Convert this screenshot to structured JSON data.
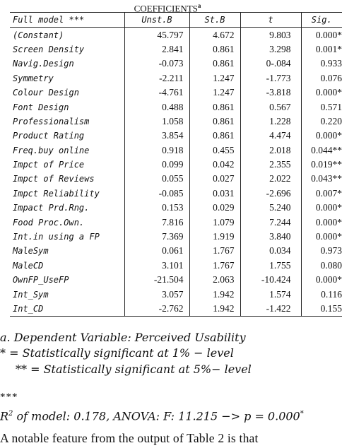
{
  "caption": {
    "title": "COEFFICIENTS",
    "sup": "a"
  },
  "table": {
    "headers": [
      "Full model ***",
      "Unst.B",
      "St.B",
      "t",
      "Sig."
    ],
    "rows": [
      [
        "(Constant)",
        "45.797",
        "4.672",
        "9.803",
        "0.000*"
      ],
      [
        "Screen Density",
        "2.841",
        "0.861",
        "3.298",
        "0.001*"
      ],
      [
        "Navig.Design",
        "-0.073",
        "0.861",
        "0-.084",
        "0.933"
      ],
      [
        "Symmetry",
        "-2.211",
        "1.247",
        "-1.773",
        "0.076"
      ],
      [
        "Colour Design",
        "-4.761",
        "1.247",
        "-3.818",
        "0.000*"
      ],
      [
        "Font Design",
        "0.488",
        "0.861",
        "0.567",
        "0.571"
      ],
      [
        "Professionalism",
        "1.058",
        "0.861",
        "1.228",
        "0.220"
      ],
      [
        "Product Rating",
        "3.854",
        "0.861",
        "4.474",
        "0.000*"
      ],
      [
        "Freq.buy online",
        "0.918",
        "0.455",
        "2.018",
        "0.044**"
      ],
      [
        "Impct of Price",
        "0.099",
        "0.042",
        "2.355",
        "0.019**"
      ],
      [
        "Impct of Reviews",
        "0.055",
        "0.027",
        "2.022",
        "0.043**"
      ],
      [
        "Impct Reliability",
        "-0.085",
        "0.031",
        "-2.696",
        "0.007*"
      ],
      [
        "Impact Prd.Rng.",
        "0.153",
        "0.029",
        "5.240",
        "0.000*"
      ],
      [
        "Food Proc.Own.",
        "7.816",
        "1.079",
        "7.244",
        "0.000*"
      ],
      [
        "Int.in using a FP",
        "7.369",
        "1.919",
        "3.840",
        "0.000*"
      ],
      [
        "MaleSym",
        "0.061",
        "1.767",
        "0.034",
        "0.973"
      ],
      [
        "MaleCD",
        "3.101",
        "1.767",
        "1.755",
        "0.080"
      ],
      [
        "OwnFP_UseFP",
        "-21.504",
        "2.063",
        "-10.424",
        "0.000*"
      ],
      [
        "Int_Sym",
        "3.057",
        "1.942",
        "1.574",
        "0.116"
      ],
      [
        "Int_CD",
        "-2.762",
        "1.942",
        "-1.422",
        "0.155"
      ]
    ]
  },
  "notes": {
    "dependent": "a. Dependent Variable: Perceived Usability",
    "sig1": "* = Statistically significant at 1% − level",
    "sig5": "** = Statistically significant at 5%− level",
    "stars": "***",
    "r2_prefix": "R",
    "r2_exp": "2",
    "r2_text": "of model: 0.178, ANOVA: F: 11.215 −> p = 0.000",
    "r2_star": "*"
  },
  "paragraph": "A notable feature from the output of Table 2 is that"
}
